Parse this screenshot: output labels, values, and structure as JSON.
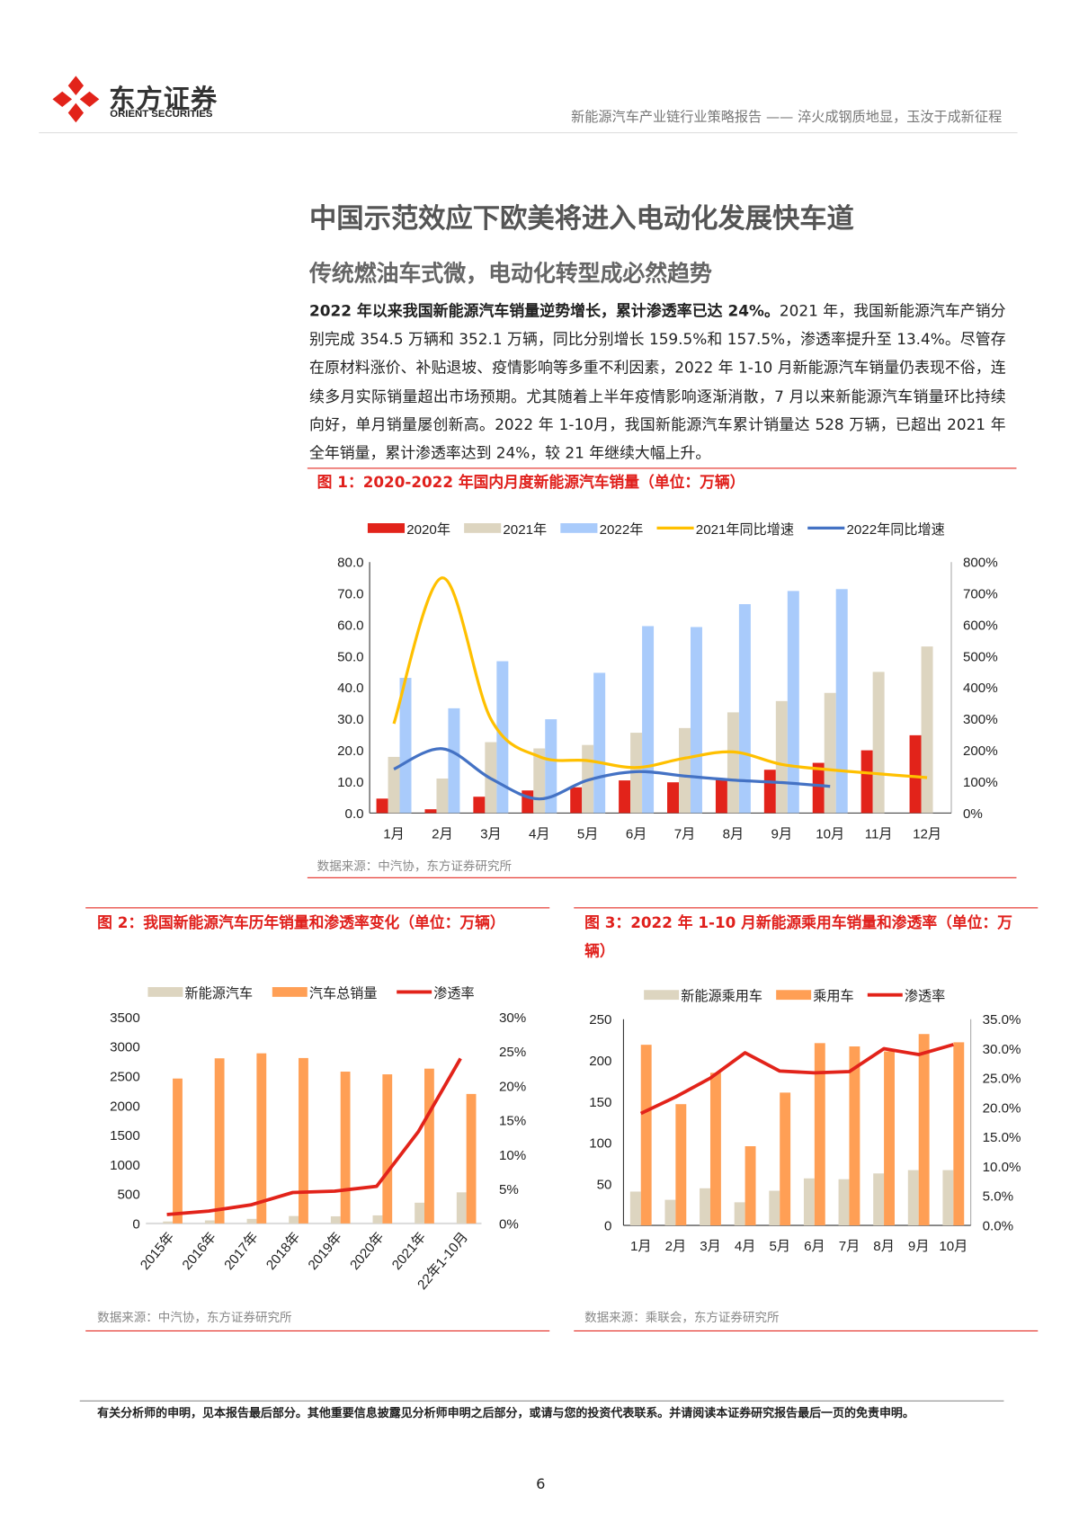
{
  "header": {
    "company_cn": "东方证券",
    "company_en": "ORIENT SECURITIES",
    "report_title": "新能源汽车产业链行业策略报告 —— 淬火成钢质地显，玉汝于成新征程"
  },
  "section_title": "中国示范效应下欧美将进入电动化发展快车道",
  "subsection_title": "传统燃油车式微，电动化转型成必然趋势",
  "paragraph": {
    "lead": "2022 年以来我国新能源汽车销量逆势增长，累计渗透率已达 24%。",
    "body": "2021 年，我国新能源汽车产销分别完成 354.5 万辆和 352.1 万辆，同比分别增长 159.5%和 157.5%，渗透率提升至 13.4%。尽管存在原材料涨价、补贴退坡、疫情影响等多重不利因素，2022 年 1-10 月新能源汽车销量仍表现不俗，连续多月实际销量超出市场预期。尤其随着上半年疫情影响逐渐消散，7 月以来新能源汽车销量环比持续向好，单月销量屡创新高。2022 年 1-10月，我国新能源汽车累计销量达 528 万辆，已超出 2021 年全年销量，累计渗透率达到 24%，较 21 年继续大幅上升。"
  },
  "figures": {
    "fig1": {
      "title": "图 1：2020-2022 年国内月度新能源汽车销量（单位：万辆）",
      "source": "数据来源：中汽协，东方证券研究所"
    },
    "fig2": {
      "title": "图 2：我国新能源汽车历年销量和渗透率变化（单位：万辆）",
      "source": "数据来源：中汽协，东方证券研究所"
    },
    "fig3": {
      "title_line1": "图 3：2022 年 1-10 月新能源乘用车销量和渗透率（单位：万",
      "title_line2": "辆）",
      "source": "数据来源：乘联会，东方证券研究所"
    }
  },
  "chart_data": [
    {
      "type": "bar",
      "categories": [
        "1月",
        "2月",
        "3月",
        "4月",
        "5月",
        "6月",
        "7月",
        "8月",
        "9月",
        "10月",
        "11月",
        "12月"
      ],
      "series": [
        {
          "name": "2020年",
          "kind": "bar",
          "axis": "left",
          "color": "#e2231a",
          "values": [
            4.6,
            1.2,
            5.2,
            7.2,
            8.2,
            10.4,
            9.8,
            11.0,
            13.8,
            16.0,
            20.0,
            24.8
          ]
        },
        {
          "name": "2021年",
          "kind": "bar",
          "axis": "left",
          "color": "#ddd5c0",
          "values": [
            17.9,
            11.0,
            22.6,
            20.6,
            21.7,
            25.6,
            27.1,
            32.1,
            35.7,
            38.3,
            45.0,
            53.1
          ]
        },
        {
          "name": "2022年",
          "kind": "bar",
          "axis": "left",
          "color": "#a9cbfb",
          "values": [
            43.1,
            33.4,
            48.4,
            29.9,
            44.7,
            59.6,
            59.3,
            66.6,
            70.8,
            71.4,
            null,
            null
          ]
        },
        {
          "name": "2021年同比增速",
          "kind": "line",
          "axis": "right",
          "color": "#ffc000",
          "values": [
            285,
            750,
            300,
            180,
            167,
            145,
            175,
            195,
            155,
            138,
            125,
            113
          ]
        },
        {
          "name": "2022年同比增速",
          "kind": "line",
          "axis": "right",
          "color": "#4472c4",
          "values": [
            140,
            205,
            110,
            45,
            105,
            132,
            118,
            105,
            97,
            85,
            null,
            null
          ]
        }
      ],
      "left_ticks": [
        "0.0",
        "10.0",
        "20.0",
        "30.0",
        "40.0",
        "50.0",
        "60.0",
        "70.0",
        "80.0"
      ],
      "right_ticks": [
        "0%",
        "100%",
        "200%",
        "300%",
        "400%",
        "500%",
        "600%",
        "700%",
        "800%"
      ],
      "ylim": [
        0,
        80
      ],
      "y2lim": [
        0,
        800
      ],
      "legend": "top"
    },
    {
      "type": "bar",
      "categories": [
        "2015年",
        "2016年",
        "2017年",
        "2018年",
        "2019年",
        "2020年",
        "2021年",
        "22年1-10月"
      ],
      "series": [
        {
          "name": "新能源汽车",
          "kind": "bar",
          "axis": "left",
          "color": "#ddd5c0",
          "values": [
            33,
            51,
            78,
            126,
            121,
            137,
            352,
            528
          ]
        },
        {
          "name": "汽车总销量",
          "kind": "bar",
          "axis": "left",
          "color": "#ff9f55",
          "values": [
            2460,
            2803,
            2888,
            2808,
            2577,
            2531,
            2628,
            2198
          ]
        },
        {
          "name": "渗透率",
          "kind": "line",
          "axis": "right",
          "color": "#e2231a",
          "values": [
            1.3,
            1.8,
            2.7,
            4.5,
            4.7,
            5.4,
            13.4,
            24.0
          ]
        }
      ],
      "left_ticks": [
        "0",
        "500",
        "1000",
        "1500",
        "2000",
        "2500",
        "3000",
        "3500"
      ],
      "right_ticks": [
        "0%",
        "5%",
        "10%",
        "15%",
        "20%",
        "25%",
        "30%"
      ],
      "ylim": [
        0,
        3500
      ],
      "y2lim": [
        0,
        30
      ],
      "legend": "top"
    },
    {
      "type": "bar",
      "categories": [
        "1月",
        "2月",
        "3月",
        "4月",
        "5月",
        "6月",
        "7月",
        "8月",
        "9月",
        "10月"
      ],
      "series": [
        {
          "name": "新能源乘用车",
          "kind": "bar",
          "axis": "left",
          "color": "#ddd5c0",
          "values": [
            41,
            31,
            45,
            28,
            42,
            57,
            56,
            63,
            67,
            67
          ]
        },
        {
          "name": "乘用车",
          "kind": "bar",
          "axis": "left",
          "color": "#ff9f55",
          "values": [
            219,
            147,
            185,
            96,
            161,
            221,
            217,
            211,
            232,
            222
          ]
        },
        {
          "name": "渗透率",
          "kind": "line",
          "axis": "right",
          "color": "#e2231a",
          "values": [
            19.0,
            21.8,
            25.0,
            29.3,
            26.2,
            25.9,
            26.1,
            30.0,
            29.0,
            30.7
          ]
        }
      ],
      "left_ticks": [
        "0",
        "50",
        "100",
        "150",
        "200",
        "250"
      ],
      "right_ticks": [
        "0.0%",
        "5.0%",
        "10.0%",
        "15.0%",
        "20.0%",
        "25.0%",
        "30.0%",
        "35.0%"
      ],
      "ylim": [
        0,
        250
      ],
      "y2lim": [
        0,
        35
      ],
      "legend": "top"
    }
  ],
  "footer": {
    "disclaimer": "有关分析师的申明，见本报告最后部分。其他重要信息披露见分析师申明之后部分，或请与您的投资代表联系。并请阅读本证券研究报告最后一页的免责申明。",
    "page_number": "6"
  }
}
